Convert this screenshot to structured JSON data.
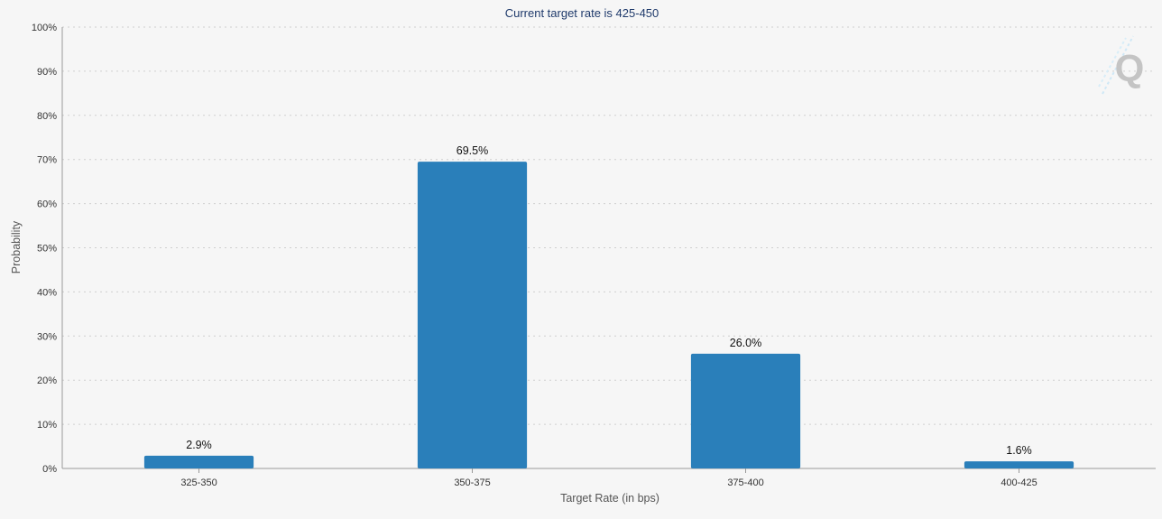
{
  "chart_data": {
    "type": "bar",
    "title": "Current target rate is 425-450",
    "xlabel": "Target Rate (in bps)",
    "ylabel": "Probability",
    "categories": [
      "325-350",
      "350-375",
      "375-400",
      "400-425"
    ],
    "values": [
      2.9,
      69.5,
      26.0,
      1.6
    ],
    "data_labels": [
      "2.9%",
      "69.5%",
      "26.0%",
      "1.6%"
    ],
    "ylim": [
      0,
      100
    ],
    "yticks": [
      0,
      10,
      20,
      30,
      40,
      50,
      60,
      70,
      80,
      90,
      100
    ],
    "ytick_labels": [
      "0%",
      "10%",
      "20%",
      "30%",
      "40%",
      "50%",
      "60%",
      "70%",
      "80%",
      "90%",
      "100%"
    ],
    "grid": true,
    "bar_color": "#2a7fba",
    "logo_letter": "Q"
  }
}
